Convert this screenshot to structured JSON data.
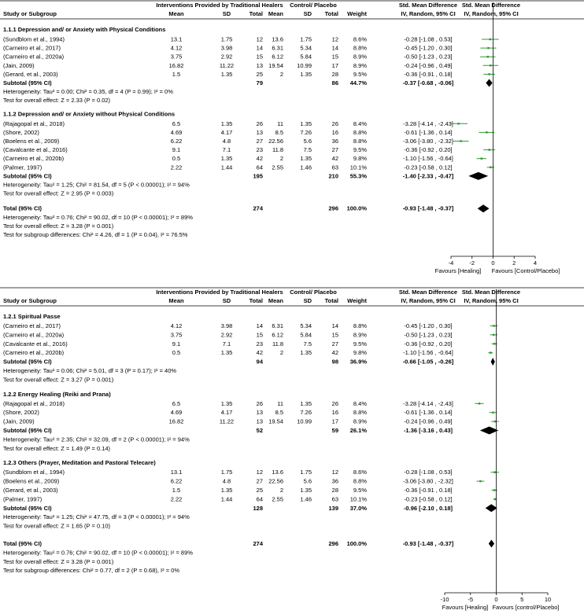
{
  "header": {
    "study_col": "Study or Subgroup",
    "group1": "Interventions Provided by Traditional Healers",
    "group2": "Control/ Placebo",
    "mean": "Mean",
    "sd": "SD",
    "total": "Total",
    "weight": "Weight",
    "effect_col_top": "Std. Mean Difference",
    "effect_col_sub": "IV, Random, 95% CI"
  },
  "chart_data": [
    {
      "type": "forest",
      "panel": "by physical conditions",
      "xlim": [
        -4,
        4
      ],
      "ticks": [
        -4,
        -2,
        0,
        2,
        4
      ],
      "tick_labels": [
        "-4",
        "-2",
        "0",
        "2",
        "4"
      ],
      "favours_left": "Favours [Healing]",
      "favours_right": "Favours [Control/Placebo]",
      "subgroups": [
        {
          "title": "1.1.1 Depression and/ or Anxiety with Physical Conditions",
          "studies": [
            {
              "name": "(Sundblom et al., 1994)",
              "m1": "13.1",
              "sd1": "1.75",
              "n1": "12",
              "m2": "13.6",
              "sd2": "1.75",
              "n2": "12",
              "weight": "8.6%",
              "ci_text": "-0.28 [-1.08 , 0.53]",
              "est": -0.28,
              "lo": -1.08,
              "hi": 0.53
            },
            {
              "name": "(Carneiro et al., 2017)",
              "m1": "4.12",
              "sd1": "3.98",
              "n1": "14",
              "m2": "6.31",
              "sd2": "5.34",
              "n2": "14",
              "weight": "8.8%",
              "ci_text": "-0.45 [-1.20 , 0.30]",
              "est": -0.45,
              "lo": -1.2,
              "hi": 0.3
            },
            {
              "name": "(Carneiro et al., 2020a)",
              "m1": "3.75",
              "sd1": "2.92",
              "n1": "15",
              "m2": "6.12",
              "sd2": "5.84",
              "n2": "15",
              "weight": "8.9%",
              "ci_text": "-0.50 [-1.23 , 0.23]",
              "est": -0.5,
              "lo": -1.23,
              "hi": 0.23
            },
            {
              "name": "(Jain, 2009)",
              "m1": "16.82",
              "sd1": "11.22",
              "n1": "13",
              "m2": "19.54",
              "sd2": "10.99",
              "n2": "17",
              "weight": "8.9%",
              "ci_text": "-0.24 [-0.96 , 0.49]",
              "est": -0.24,
              "lo": -0.96,
              "hi": 0.49
            },
            {
              "name": "(Gerard, et al., 2003)",
              "m1": "1.5",
              "sd1": "1.35",
              "n1": "25",
              "m2": "2",
              "sd2": "1.35",
              "n2": "28",
              "weight": "9.5%",
              "ci_text": "-0.36 [-0.91 , 0.18]",
              "est": -0.36,
              "lo": -0.91,
              "hi": 0.18
            }
          ],
          "subtotal": {
            "label": "Subtotal (95% CI)",
            "n1": "79",
            "n2": "86",
            "weight": "44.7%",
            "ci_text": "-0.37 [-0.68 , -0.06]",
            "est": -0.37,
            "lo": -0.68,
            "hi": -0.06
          },
          "heterogeneity": "Heterogeneity: Tau² = 0.00; Chi² = 0.35, df = 4 (P = 0.99); I² = 0%",
          "overall": "Test for overall effect: Z = 2.33 (P = 0.02)"
        },
        {
          "title": "1.1.2 Depression and/ or Anxiety without Physical Conditions",
          "studies": [
            {
              "name": "(Rajagopal et al., 2018)",
              "m1": "6.5",
              "sd1": "1.35",
              "n1": "26",
              "m2": "11",
              "sd2": "1.35",
              "n2": "26",
              "weight": "8.4%",
              "ci_text": "-3.28 [-4.14 , -2.43]",
              "est": -3.28,
              "lo": -4.14,
              "hi": -2.43
            },
            {
              "name": "(Shore, 2002)",
              "m1": "4.69",
              "sd1": "4.17",
              "n1": "13",
              "m2": "8.5",
              "sd2": "7.26",
              "n2": "16",
              "weight": "8.8%",
              "ci_text": "-0.61 [-1.36 , 0.14]",
              "est": -0.61,
              "lo": -1.36,
              "hi": 0.14
            },
            {
              "name": "(Boelens et al., 2009)",
              "m1": "6.22",
              "sd1": "4.8",
              "n1": "27",
              "m2": "22.56",
              "sd2": "5.6",
              "n2": "36",
              "weight": "8.8%",
              "ci_text": "-3.06 [-3.80 , -2.32]",
              "est": -3.06,
              "lo": -3.8,
              "hi": -2.32
            },
            {
              "name": "(Cavalcante et al., 2016)",
              "m1": "9.1",
              "sd1": "7.1",
              "n1": "23",
              "m2": "11.8",
              "sd2": "7.5",
              "n2": "27",
              "weight": "9.5%",
              "ci_text": "-0.36 [-0.92 , 0.20]",
              "est": -0.36,
              "lo": -0.92,
              "hi": 0.2
            },
            {
              "name": "(Carneiro et al., 2020b)",
              "m1": "0.5",
              "sd1": "1.35",
              "n1": "42",
              "m2": "2",
              "sd2": "1.35",
              "n2": "42",
              "weight": "9.8%",
              "ci_text": "-1.10 [-1.56 , -0.64]",
              "est": -1.1,
              "lo": -1.56,
              "hi": -0.64
            },
            {
              "name": "(Palmer, 1997)",
              "m1": "2.22",
              "sd1": "1.44",
              "n1": "64",
              "m2": "2.55",
              "sd2": "1.46",
              "n2": "63",
              "weight": "10.1%",
              "ci_text": "-0.23 [-0.58 , 0.12]",
              "est": -0.23,
              "lo": -0.58,
              "hi": 0.12
            }
          ],
          "subtotal": {
            "label": "Subtotal (95% CI)",
            "n1": "195",
            "n2": "210",
            "weight": "55.3%",
            "ci_text": "-1.40 [-2.33 , -0.47]",
            "est": -1.4,
            "lo": -2.33,
            "hi": -0.47
          },
          "heterogeneity": "Heterogeneity: Tau² = 1.25; Chi² = 81.54, df = 5 (P < 0.00001); I² = 94%",
          "overall": "Test for overall effect: Z = 2.95 (P = 0.003)"
        }
      ],
      "total": {
        "label": "Total (95% CI)",
        "n1": "274",
        "n2": "296",
        "weight": "100.0%",
        "ci_text": "-0.93 [-1.48 , -0.37]",
        "est": -0.93,
        "lo": -1.48,
        "hi": -0.37
      },
      "footer": [
        "Heterogeneity: Tau² = 0.76; Chi² = 90.02, df = 10 (P < 0.00001); I² = 89%",
        "Test for overall effect: Z = 3.28 (P = 0.001)",
        "Test for subgroup differences: Chi² = 4.26, df = 1 (P = 0.04), I² = 76.5%"
      ]
    },
    {
      "type": "forest",
      "panel": "by intervention type",
      "xlim": [
        -10,
        10
      ],
      "ticks": [
        -10,
        -5,
        0,
        5,
        10
      ],
      "tick_labels": [
        "-10",
        "-5",
        "0",
        "5",
        "10"
      ],
      "favours_left": "Favours [Healing]",
      "favours_right": "Favours [control/Placebo]",
      "subgroups": [
        {
          "title": "1.2.1 Spiritual Passe",
          "studies": [
            {
              "name": "(Carneiro et al., 2017)",
              "m1": "4.12",
              "sd1": "3.98",
              "n1": "14",
              "m2": "6.31",
              "sd2": "5.34",
              "n2": "14",
              "weight": "8.8%",
              "ci_text": "-0.45 [-1.20 , 0.30]",
              "est": -0.45,
              "lo": -1.2,
              "hi": 0.3
            },
            {
              "name": "(Carneiro et al., 2020a)",
              "m1": "3.75",
              "sd1": "2.92",
              "n1": "15",
              "m2": "6.12",
              "sd2": "5.84",
              "n2": "15",
              "weight": "8.9%",
              "ci_text": "-0.50 [-1.23 , 0.23]",
              "est": -0.5,
              "lo": -1.23,
              "hi": 0.23
            },
            {
              "name": "(Cavalcante et al., 2016)",
              "m1": "9.1",
              "sd1": "7.1",
              "n1": "23",
              "m2": "11.8",
              "sd2": "7.5",
              "n2": "27",
              "weight": "9.5%",
              "ci_text": "-0.36 [-0.92 , 0.20]",
              "est": -0.36,
              "lo": -0.92,
              "hi": 0.2
            },
            {
              "name": "(Carneiro et al., 2020b)",
              "m1": "0.5",
              "sd1": "1.35",
              "n1": "42",
              "m2": "2",
              "sd2": "1.35",
              "n2": "42",
              "weight": "9.8%",
              "ci_text": "-1.10 [-1.56 , -0.64]",
              "est": -1.1,
              "lo": -1.56,
              "hi": -0.64
            }
          ],
          "subtotal": {
            "label": "Subtotal (95% CI)",
            "n1": "94",
            "n2": "98",
            "weight": "36.9%",
            "ci_text": "-0.66 [-1.05 , -0.26]",
            "est": -0.66,
            "lo": -1.05,
            "hi": -0.26
          },
          "heterogeneity": "Heterogeneity: Tau² = 0.06; Chi² = 5.01, df = 3 (P = 0.17); I² = 40%",
          "overall": "Test for overall effect: Z = 3.27 (P = 0.001)"
        },
        {
          "title": "1.2.2 Energy Healing (Reiki and Prana)",
          "studies": [
            {
              "name": "(Rajagopal et al., 2018)",
              "m1": "6.5",
              "sd1": "1.35",
              "n1": "26",
              "m2": "11",
              "sd2": "1.35",
              "n2": "26",
              "weight": "8.4%",
              "ci_text": "-3.28 [-4.14 , -2.43]",
              "est": -3.28,
              "lo": -4.14,
              "hi": -2.43
            },
            {
              "name": "(Shore, 2002)",
              "m1": "4.69",
              "sd1": "4.17",
              "n1": "13",
              "m2": "8.5",
              "sd2": "7.26",
              "n2": "16",
              "weight": "8.8%",
              "ci_text": "-0.61 [-1.36 , 0.14]",
              "est": -0.61,
              "lo": -1.36,
              "hi": 0.14
            },
            {
              "name": "(Jain, 2009)",
              "m1": "16.82",
              "sd1": "11.22",
              "n1": "13",
              "m2": "19.54",
              "sd2": "10.99",
              "n2": "17",
              "weight": "8.9%",
              "ci_text": "-0.24 [-0.96 , 0.49]",
              "est": -0.24,
              "lo": -0.96,
              "hi": 0.49
            }
          ],
          "subtotal": {
            "label": "Subtotal (95% CI)",
            "n1": "52",
            "n2": "59",
            "weight": "26.1%",
            "ci_text": "-1.36 [-3.16 , 0.43]",
            "est": -1.36,
            "lo": -3.16,
            "hi": 0.43
          },
          "heterogeneity": "Heterogeneity: Tau² = 2.35; Chi² = 32.09, df = 2 (P < 0.00001); I² = 94%",
          "overall": "Test for overall effect: Z = 1.49 (P = 0.14)"
        },
        {
          "title": "1.2.3 Others (Prayer, Meditation and Pastoral Telecare)",
          "studies": [
            {
              "name": "(Sundblom et al., 1994)",
              "m1": "13.1",
              "sd1": "1.75",
              "n1": "12",
              "m2": "13.6",
              "sd2": "1.75",
              "n2": "12",
              "weight": "8.6%",
              "ci_text": "-0.28 [-1.08 , 0.53]",
              "est": -0.28,
              "lo": -1.08,
              "hi": 0.53
            },
            {
              "name": "(Boelens et al., 2009)",
              "m1": "6.22",
              "sd1": "4.8",
              "n1": "27",
              "m2": "22.56",
              "sd2": "5.6",
              "n2": "36",
              "weight": "8.8%",
              "ci_text": "-3.06 [-3.80 , -2.32]",
              "est": -3.06,
              "lo": -3.8,
              "hi": -2.32
            },
            {
              "name": "(Gerard, et al., 2003)",
              "m1": "1.5",
              "sd1": "1.35",
              "n1": "25",
              "m2": "2",
              "sd2": "1.35",
              "n2": "28",
              "weight": "9.5%",
              "ci_text": "-0.36 [-0.91 , 0.18]",
              "est": -0.36,
              "lo": -0.91,
              "hi": 0.18
            },
            {
              "name": "(Palmer, 1997)",
              "m1": "2.22",
              "sd1": "1.44",
              "n1": "64",
              "m2": "2.55",
              "sd2": "1.46",
              "n2": "63",
              "weight": "10.1%",
              "ci_text": "-0.23 [-0.58 , 0.12]",
              "est": -0.23,
              "lo": -0.58,
              "hi": 0.12
            }
          ],
          "subtotal": {
            "label": "Subtotal (95% CI)",
            "n1": "128",
            "n2": "139",
            "weight": "37.0%",
            "ci_text": "-0.96 [-2.10 , 0.18]",
            "est": -0.96,
            "lo": -2.1,
            "hi": 0.18
          },
          "heterogeneity": "Heterogeneity: Tau² = 1.25; Chi² = 47.75, df = 3 (P < 0.00001); I² = 94%",
          "overall": "Test for overall effect: Z = 1.65 (P = 0.10)"
        }
      ],
      "total": {
        "label": "Total (95% CI)",
        "n1": "274",
        "n2": "296",
        "weight": "100.0%",
        "ci_text": "-0.93 [-1.48 , -0.37]",
        "est": -0.93,
        "lo": -1.48,
        "hi": -0.37
      },
      "footer": [
        "Heterogeneity: Tau² = 0.76; Chi² = 90.02, df = 10 (P < 0.00001); I² = 89%",
        "Test for overall effect: Z = 3.28 (P = 0.001)",
        "Test for subgroup differences: Chi² = 0.77, df = 2 (P = 0.68), I² = 0%"
      ]
    }
  ]
}
